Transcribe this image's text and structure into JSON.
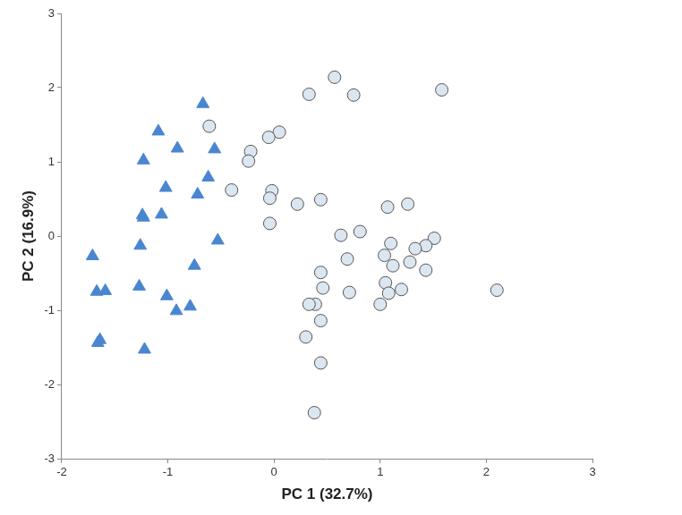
{
  "chart_data": {
    "type": "scatter",
    "x_label": "PC 1 (32.7%)",
    "y_label": "PC 2 (16.9%)",
    "xlim": [
      -2,
      3
    ],
    "xticks": [
      -2,
      -1,
      0,
      1,
      2,
      3
    ],
    "ylim": [
      -3,
      3
    ],
    "yticks": [
      -3,
      -2,
      -1,
      0,
      1,
      2,
      3
    ],
    "grid": false,
    "series": [
      {
        "color": "#4a86d0",
        "marker": "triangle",
        "x": [
          -1.71,
          -1.67,
          -1.59,
          -1.66,
          -1.64,
          -1.22,
          -1.27,
          -1.26,
          -1.23,
          -1.24,
          -1.23,
          -1.09,
          -1.02,
          -1.06,
          -1.01,
          -0.91,
          -0.92,
          -0.79,
          -0.75,
          -0.72,
          -0.67,
          -0.62,
          -0.56,
          -0.53
        ],
        "y": [
          -0.27,
          -0.75,
          -0.74,
          -1.44,
          -1.4,
          -1.53,
          -0.68,
          -0.13,
          0.25,
          0.28,
          1.02,
          1.41,
          0.65,
          0.29,
          -0.81,
          1.18,
          -1.01,
          -0.95,
          -0.4,
          0.56,
          1.78,
          0.79,
          1.17,
          -0.06
        ]
      },
      {
        "color": "#dce6f0",
        "marker": "circle",
        "x": [
          -0.61,
          -0.4,
          -0.22,
          -0.24,
          0.05,
          -0.05,
          -0.02,
          -0.04,
          -0.04,
          0.22,
          0.44,
          0.33,
          0.57,
          0.75,
          1.58,
          0.63,
          0.69,
          0.81,
          1.07,
          1.26,
          0.44,
          0.46,
          0.39,
          0.33,
          0.71,
          0.44,
          0.3,
          0.44,
          0.38,
          1.51,
          1.43,
          1.33,
          1.28,
          1.43,
          1.2,
          1.1,
          1.04,
          1.12,
          1.05,
          1.08,
          1.0,
          2.1
        ],
        "y": [
          1.48,
          0.62,
          1.14,
          1.01,
          1.4,
          1.33,
          0.61,
          0.51,
          0.17,
          0.43,
          0.49,
          1.91,
          2.14,
          1.9,
          1.97,
          0.01,
          -0.31,
          0.06,
          0.39,
          0.43,
          -0.49,
          -0.7,
          -0.92,
          -0.92,
          -0.76,
          -1.14,
          -1.36,
          -1.71,
          -2.38,
          -0.03,
          -0.13,
          -0.17,
          -0.35,
          -0.46,
          -0.72,
          -0.1,
          -0.26,
          -0.4,
          -0.63,
          -0.77,
          -0.92,
          -0.73
        ]
      }
    ]
  }
}
